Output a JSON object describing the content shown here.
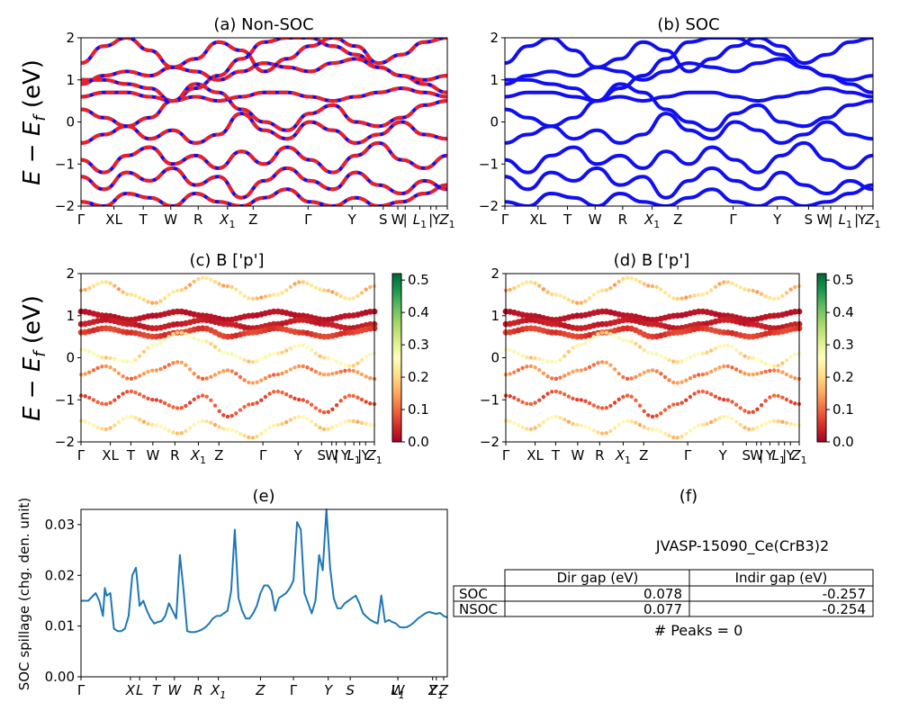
{
  "figure": {
    "band_ylabel": "E − E_f (eV)",
    "band_ylabel_main": "E − E",
    "band_ylabel_sub": "f",
    "band_ylabel_unit": " (eV)"
  },
  "colors": {
    "nonsoc_line": "#e8202a",
    "soc_line": "#1010f0",
    "spillage_line": "#1f77b4",
    "cmap": [
      "#a50026",
      "#d73027",
      "#f46d43",
      "#fdae61",
      "#fee08b",
      "#ffffbf",
      "#d9ef8b",
      "#a6d96a",
      "#66bd63",
      "#1a9850",
      "#006837"
    ]
  },
  "chart_data": [
    {
      "id": "a",
      "type": "line",
      "title": "(a) Non-SOC",
      "ylim": [
        -2,
        2
      ],
      "yticks": [
        "2",
        "1",
        "0",
        "−1",
        "−2"
      ],
      "xticks": [
        "Γ",
        "XL",
        "T",
        "W",
        "R",
        "X1",
        "Z",
        "Γ",
        "Y",
        "S",
        "W",
        "|",
        "L1",
        "|",
        "Y",
        "Z1"
      ],
      "series": [
        {
          "values": [
            1.0,
            1.0,
            0.9,
            0.8,
            0.5,
            0.8,
            1.1,
            1.5,
            1.9,
            2.0,
            2.0,
            1.8,
            1.6,
            1.3,
            1.1,
            0.9,
            0.7
          ]
        },
        {
          "values": [
            0.9,
            1.1,
            1.2,
            1.1,
            1.3,
            1.2,
            1.0,
            1.2,
            1.4,
            1.3,
            1.2,
            1.4,
            1.5,
            1.3,
            1.1,
            1.0,
            1.1
          ]
        },
        {
          "values": [
            1.4,
            1.8,
            2.0,
            1.7,
            1.3,
            1.5,
            1.9,
            1.7,
            1.2,
            1.5,
            1.8,
            2.0,
            1.8,
            1.4,
            1.6,
            1.9,
            2.0
          ]
        },
        {
          "values": [
            0.6,
            0.7,
            0.7,
            0.6,
            0.5,
            0.6,
            0.5,
            0.6,
            0.7,
            0.7,
            0.6,
            0.5,
            0.6,
            0.7,
            0.8,
            0.7,
            0.6
          ]
        },
        {
          "values": [
            0.3,
            0.1,
            -0.1,
            0.1,
            0.5,
            0.9,
            0.7,
            0.3,
            0.0,
            -0.2,
            0.2,
            0.4,
            0.0,
            -0.1,
            0.1,
            0.4,
            0.5
          ]
        },
        {
          "values": [
            -0.5,
            -0.3,
            -0.1,
            -0.4,
            -0.2,
            -0.5,
            -0.3,
            0.2,
            -0.2,
            -0.4,
            0.0,
            -0.2,
            -0.5,
            -0.3,
            0.0,
            -0.3,
            -0.4
          ]
        },
        {
          "values": [
            -0.9,
            -1.2,
            -0.8,
            -0.6,
            -1.0,
            -0.8,
            -1.1,
            -0.7,
            -1.0,
            -0.6,
            -0.9,
            -1.2,
            -0.8,
            -0.5,
            -0.9,
            -1.1,
            -0.8
          ]
        },
        {
          "values": [
            -1.3,
            -1.6,
            -1.2,
            -1.4,
            -1.1,
            -1.5,
            -1.3,
            -1.8,
            -1.4,
            -1.1,
            -1.4,
            -1.6,
            -1.2,
            -1.5,
            -1.7,
            -1.4,
            -1.6
          ]
        },
        {
          "values": [
            -1.9,
            -2.0,
            -1.7,
            -1.8,
            -2.0,
            -1.7,
            -1.9,
            -2.0,
            -1.8,
            -1.6,
            -1.9,
            -2.0,
            -1.8,
            -2.0,
            -1.9,
            -1.7,
            -1.5
          ]
        }
      ]
    },
    {
      "id": "b",
      "type": "line",
      "title": "(b) SOC",
      "ylim": [
        -2,
        2
      ],
      "yticks": [
        "2",
        "1",
        "0",
        "−1",
        "−2"
      ],
      "xticks": [
        "Γ",
        "XL",
        "T",
        "W",
        "R",
        "X1",
        "Z",
        "Γ",
        "Y",
        "S",
        "W",
        "|",
        "L1",
        "|",
        "Y",
        "Z1"
      ],
      "series": [
        {
          "values": [
            1.0,
            1.0,
            0.9,
            0.8,
            0.5,
            0.8,
            1.1,
            1.5,
            1.9,
            2.0,
            2.0,
            1.8,
            1.6,
            1.3,
            1.1,
            0.9,
            0.7
          ]
        },
        {
          "values": [
            0.9,
            1.1,
            1.2,
            1.1,
            1.3,
            1.2,
            1.0,
            1.2,
            1.4,
            1.3,
            1.2,
            1.4,
            1.5,
            1.3,
            1.1,
            1.0,
            1.1
          ]
        },
        {
          "values": [
            1.4,
            1.8,
            2.0,
            1.7,
            1.3,
            1.5,
            1.9,
            1.7,
            1.2,
            1.5,
            1.8,
            2.0,
            1.8,
            1.4,
            1.6,
            1.9,
            2.0
          ]
        },
        {
          "values": [
            0.6,
            0.7,
            0.7,
            0.6,
            0.5,
            0.6,
            0.5,
            0.6,
            0.7,
            0.7,
            0.6,
            0.5,
            0.6,
            0.7,
            0.8,
            0.7,
            0.6
          ]
        },
        {
          "values": [
            0.3,
            0.1,
            -0.1,
            0.1,
            0.5,
            0.9,
            0.7,
            0.3,
            0.0,
            -0.2,
            0.2,
            0.4,
            0.0,
            -0.1,
            0.1,
            0.4,
            0.5
          ]
        },
        {
          "values": [
            -0.5,
            -0.3,
            -0.1,
            -0.4,
            -0.2,
            -0.5,
            -0.3,
            0.2,
            -0.2,
            -0.4,
            0.0,
            -0.2,
            -0.5,
            -0.3,
            0.0,
            -0.3,
            -0.4
          ]
        },
        {
          "values": [
            -0.9,
            -1.2,
            -0.8,
            -0.6,
            -1.0,
            -0.8,
            -1.1,
            -0.7,
            -1.0,
            -0.6,
            -0.9,
            -1.2,
            -0.8,
            -0.5,
            -0.9,
            -1.1,
            -0.8
          ]
        },
        {
          "values": [
            -1.3,
            -1.6,
            -1.2,
            -1.4,
            -1.1,
            -1.5,
            -1.3,
            -1.8,
            -1.4,
            -1.1,
            -1.4,
            -1.6,
            -1.2,
            -1.5,
            -1.7,
            -1.4,
            -1.6
          ]
        },
        {
          "values": [
            -1.9,
            -2.0,
            -1.7,
            -1.8,
            -2.0,
            -1.7,
            -1.9,
            -2.0,
            -1.8,
            -1.6,
            -1.9,
            -2.0,
            -1.8,
            -2.0,
            -1.9,
            -1.7,
            -1.5
          ]
        }
      ]
    },
    {
      "id": "c",
      "type": "scatter",
      "title": "(c)  B ['p']",
      "ylim": [
        -2,
        2
      ],
      "yticks": [
        "2",
        "1",
        "0",
        "−1",
        "−2"
      ],
      "xticks": [
        "Γ",
        "XL",
        "T",
        "W",
        "R",
        "X1",
        "Z",
        "Γ",
        "Y",
        "S",
        "W",
        "|",
        "Y",
        "L1",
        "|",
        "Y",
        "Z1"
      ],
      "colorbar": {
        "ticks": [
          "0.5",
          "0.4",
          "0.3",
          "0.2",
          "0.1",
          "0.0"
        ],
        "range": [
          0.0,
          0.52
        ]
      },
      "bands": [
        {
          "values": [
            1.1,
            1.0,
            0.9,
            1.0,
            1.1,
            1.0,
            0.9,
            1.0,
            1.1,
            1.0,
            0.9,
            1.0,
            1.1
          ],
          "weight": 0.02
        },
        {
          "values": [
            0.8,
            0.9,
            0.8,
            0.7,
            0.8,
            0.9,
            0.8,
            0.7,
            0.8,
            0.9,
            0.8,
            0.7,
            0.8
          ],
          "weight": 0.03
        },
        {
          "values": [
            0.6,
            0.7,
            0.6,
            0.5,
            0.6,
            0.7,
            0.5,
            0.6,
            0.7,
            0.6,
            0.5,
            0.6,
            0.7
          ],
          "weight": 0.06
        },
        {
          "values": [
            1.6,
            1.8,
            1.5,
            1.3,
            1.6,
            1.9,
            1.7,
            1.4,
            1.5,
            1.8,
            1.6,
            1.4,
            1.7
          ],
          "weight": 0.18
        },
        {
          "values": [
            0.2,
            0.0,
            -0.1,
            0.3,
            0.6,
            0.4,
            0.1,
            -0.1,
            0.1,
            0.3,
            0.0,
            -0.2,
            0.1
          ],
          "weight": 0.22
        },
        {
          "values": [
            -0.4,
            -0.2,
            -0.5,
            -0.3,
            -0.1,
            -0.5,
            -0.3,
            -0.6,
            -0.4,
            -0.2,
            -0.4,
            -0.3,
            -0.5
          ],
          "weight": 0.12
        },
        {
          "values": [
            -0.9,
            -1.1,
            -0.8,
            -1.0,
            -1.2,
            -0.9,
            -1.4,
            -1.1,
            -0.8,
            -1.0,
            -1.3,
            -0.9,
            -1.1
          ],
          "weight": 0.08
        },
        {
          "values": [
            -1.5,
            -1.7,
            -1.4,
            -1.6,
            -1.8,
            -1.5,
            -1.7,
            -1.9,
            -1.6,
            -1.4,
            -1.7,
            -1.5,
            -1.6
          ],
          "weight": 0.2
        }
      ]
    },
    {
      "id": "d",
      "type": "scatter",
      "title": "(d) B ['p']",
      "ylim": [
        -2,
        2
      ],
      "yticks": [
        "2",
        "1",
        "0",
        "−1",
        "−2"
      ],
      "xticks": [
        "Γ",
        "XL",
        "T",
        "W",
        "R",
        "X1",
        "Z",
        "Γ",
        "Y",
        "S",
        "W",
        "|",
        "Y",
        "L1",
        "|",
        "Y",
        "Z1"
      ],
      "colorbar": {
        "ticks": [
          "0.5",
          "0.4",
          "0.3",
          "0.2",
          "0.1",
          "0.0"
        ],
        "range": [
          0.0,
          0.52
        ]
      },
      "bands": [
        {
          "values": [
            1.1,
            1.0,
            0.9,
            1.0,
            1.1,
            1.0,
            0.9,
            1.0,
            1.1,
            1.0,
            0.9,
            1.0,
            1.1
          ],
          "weight": 0.02
        },
        {
          "values": [
            0.8,
            0.9,
            0.8,
            0.7,
            0.8,
            0.9,
            0.8,
            0.7,
            0.8,
            0.9,
            0.8,
            0.7,
            0.8
          ],
          "weight": 0.03
        },
        {
          "values": [
            0.6,
            0.7,
            0.6,
            0.5,
            0.6,
            0.7,
            0.5,
            0.6,
            0.7,
            0.6,
            0.5,
            0.6,
            0.7
          ],
          "weight": 0.06
        },
        {
          "values": [
            1.6,
            1.8,
            1.5,
            1.3,
            1.6,
            1.9,
            1.7,
            1.4,
            1.5,
            1.8,
            1.6,
            1.4,
            1.7
          ],
          "weight": 0.18
        },
        {
          "values": [
            0.2,
            0.0,
            -0.1,
            0.3,
            0.6,
            0.4,
            0.1,
            -0.1,
            0.1,
            0.3,
            0.0,
            -0.2,
            0.1
          ],
          "weight": 0.22
        },
        {
          "values": [
            -0.4,
            -0.2,
            -0.5,
            -0.3,
            -0.1,
            -0.5,
            -0.3,
            -0.6,
            -0.4,
            -0.2,
            -0.4,
            -0.3,
            -0.5
          ],
          "weight": 0.12
        },
        {
          "values": [
            -0.9,
            -1.1,
            -0.8,
            -1.0,
            -1.2,
            -0.9,
            -1.4,
            -1.1,
            -0.8,
            -1.0,
            -1.3,
            -0.9,
            -1.1
          ],
          "weight": 0.08
        },
        {
          "values": [
            -1.5,
            -1.7,
            -1.4,
            -1.6,
            -1.8,
            -1.5,
            -1.7,
            -1.9,
            -1.6,
            -1.4,
            -1.7,
            -1.5,
            -1.6
          ],
          "weight": 0.2
        }
      ]
    },
    {
      "id": "e",
      "type": "line",
      "title": "(e)",
      "ylabel": "SOC spillage (chg. den. unit)",
      "ylim": [
        0.0,
        0.033
      ],
      "yticks": [
        "0.03",
        "0.02",
        "0.01",
        "0.00"
      ],
      "xticks": [
        "Γ",
        "X",
        "L",
        "T",
        "W",
        "R",
        "X1",
        "Z",
        "Γ",
        "Y",
        "S",
        "W",
        "L1",
        "Y",
        "Z",
        "Z1"
      ],
      "x": [
        0,
        2,
        4,
        5,
        6,
        6.5,
        7,
        8,
        9,
        10,
        11,
        12,
        13,
        14,
        15,
        16,
        17,
        18,
        19,
        20,
        21,
        22,
        23,
        24,
        25,
        26,
        27,
        28,
        29,
        30,
        31,
        32,
        33,
        34,
        35,
        36,
        37,
        38,
        39,
        40,
        41,
        42,
        43,
        44,
        45,
        46,
        47,
        48,
        49,
        50,
        51,
        52,
        53,
        54,
        55,
        56,
        57,
        58,
        59,
        60,
        61,
        62,
        63,
        64,
        65,
        66,
        67,
        68,
        69,
        70,
        71,
        72,
        73,
        74,
        75,
        76,
        77,
        78,
        79,
        80,
        81,
        82,
        83,
        84,
        85,
        86,
        87,
        88,
        89,
        90,
        91,
        92,
        93,
        94,
        95,
        96,
        97,
        98,
        99,
        100
      ],
      "values": [
        0.015,
        0.015,
        0.0165,
        0.015,
        0.012,
        0.0175,
        0.016,
        0.0165,
        0.0095,
        0.009,
        0.009,
        0.0095,
        0.012,
        0.02,
        0.0215,
        0.014,
        0.015,
        0.013,
        0.0115,
        0.0105,
        0.0108,
        0.011,
        0.012,
        0.0145,
        0.013,
        0.0115,
        0.024,
        0.017,
        0.009,
        0.0088,
        0.0088,
        0.009,
        0.0093,
        0.0098,
        0.0105,
        0.0115,
        0.012,
        0.012,
        0.0125,
        0.013,
        0.017,
        0.029,
        0.0155,
        0.013,
        0.0115,
        0.0115,
        0.0125,
        0.014,
        0.0165,
        0.018,
        0.018,
        0.017,
        0.013,
        0.0155,
        0.016,
        0.0165,
        0.0175,
        0.019,
        0.0305,
        0.029,
        0.0165,
        0.0145,
        0.0125,
        0.015,
        0.024,
        0.021,
        0.033,
        0.0215,
        0.0155,
        0.0135,
        0.0135,
        0.0145,
        0.015,
        0.0155,
        0.016,
        0.0145,
        0.0125,
        0.0118,
        0.0112,
        0.0108,
        0.0105,
        0.016,
        0.0108,
        0.0112,
        0.0108,
        0.0105,
        0.0098,
        0.0097,
        0.0098,
        0.0102,
        0.0108,
        0.0115,
        0.012,
        0.0125,
        0.0128,
        0.0126,
        0.0124,
        0.0126,
        0.012,
        0.0117
      ]
    }
  ],
  "table": {
    "title": "(f)",
    "caption": "JVASP-15090_Ce(CrB3)2",
    "columns": [
      "Dir gap (eV)",
      "Indir gap (eV)"
    ],
    "rows": [
      {
        "label": "SOC",
        "cells": [
          "0.078",
          "-0.257"
        ]
      },
      {
        "label": "NSOC",
        "cells": [
          "0.077",
          "-0.254"
        ]
      }
    ],
    "footer": "# Peaks = 0"
  }
}
